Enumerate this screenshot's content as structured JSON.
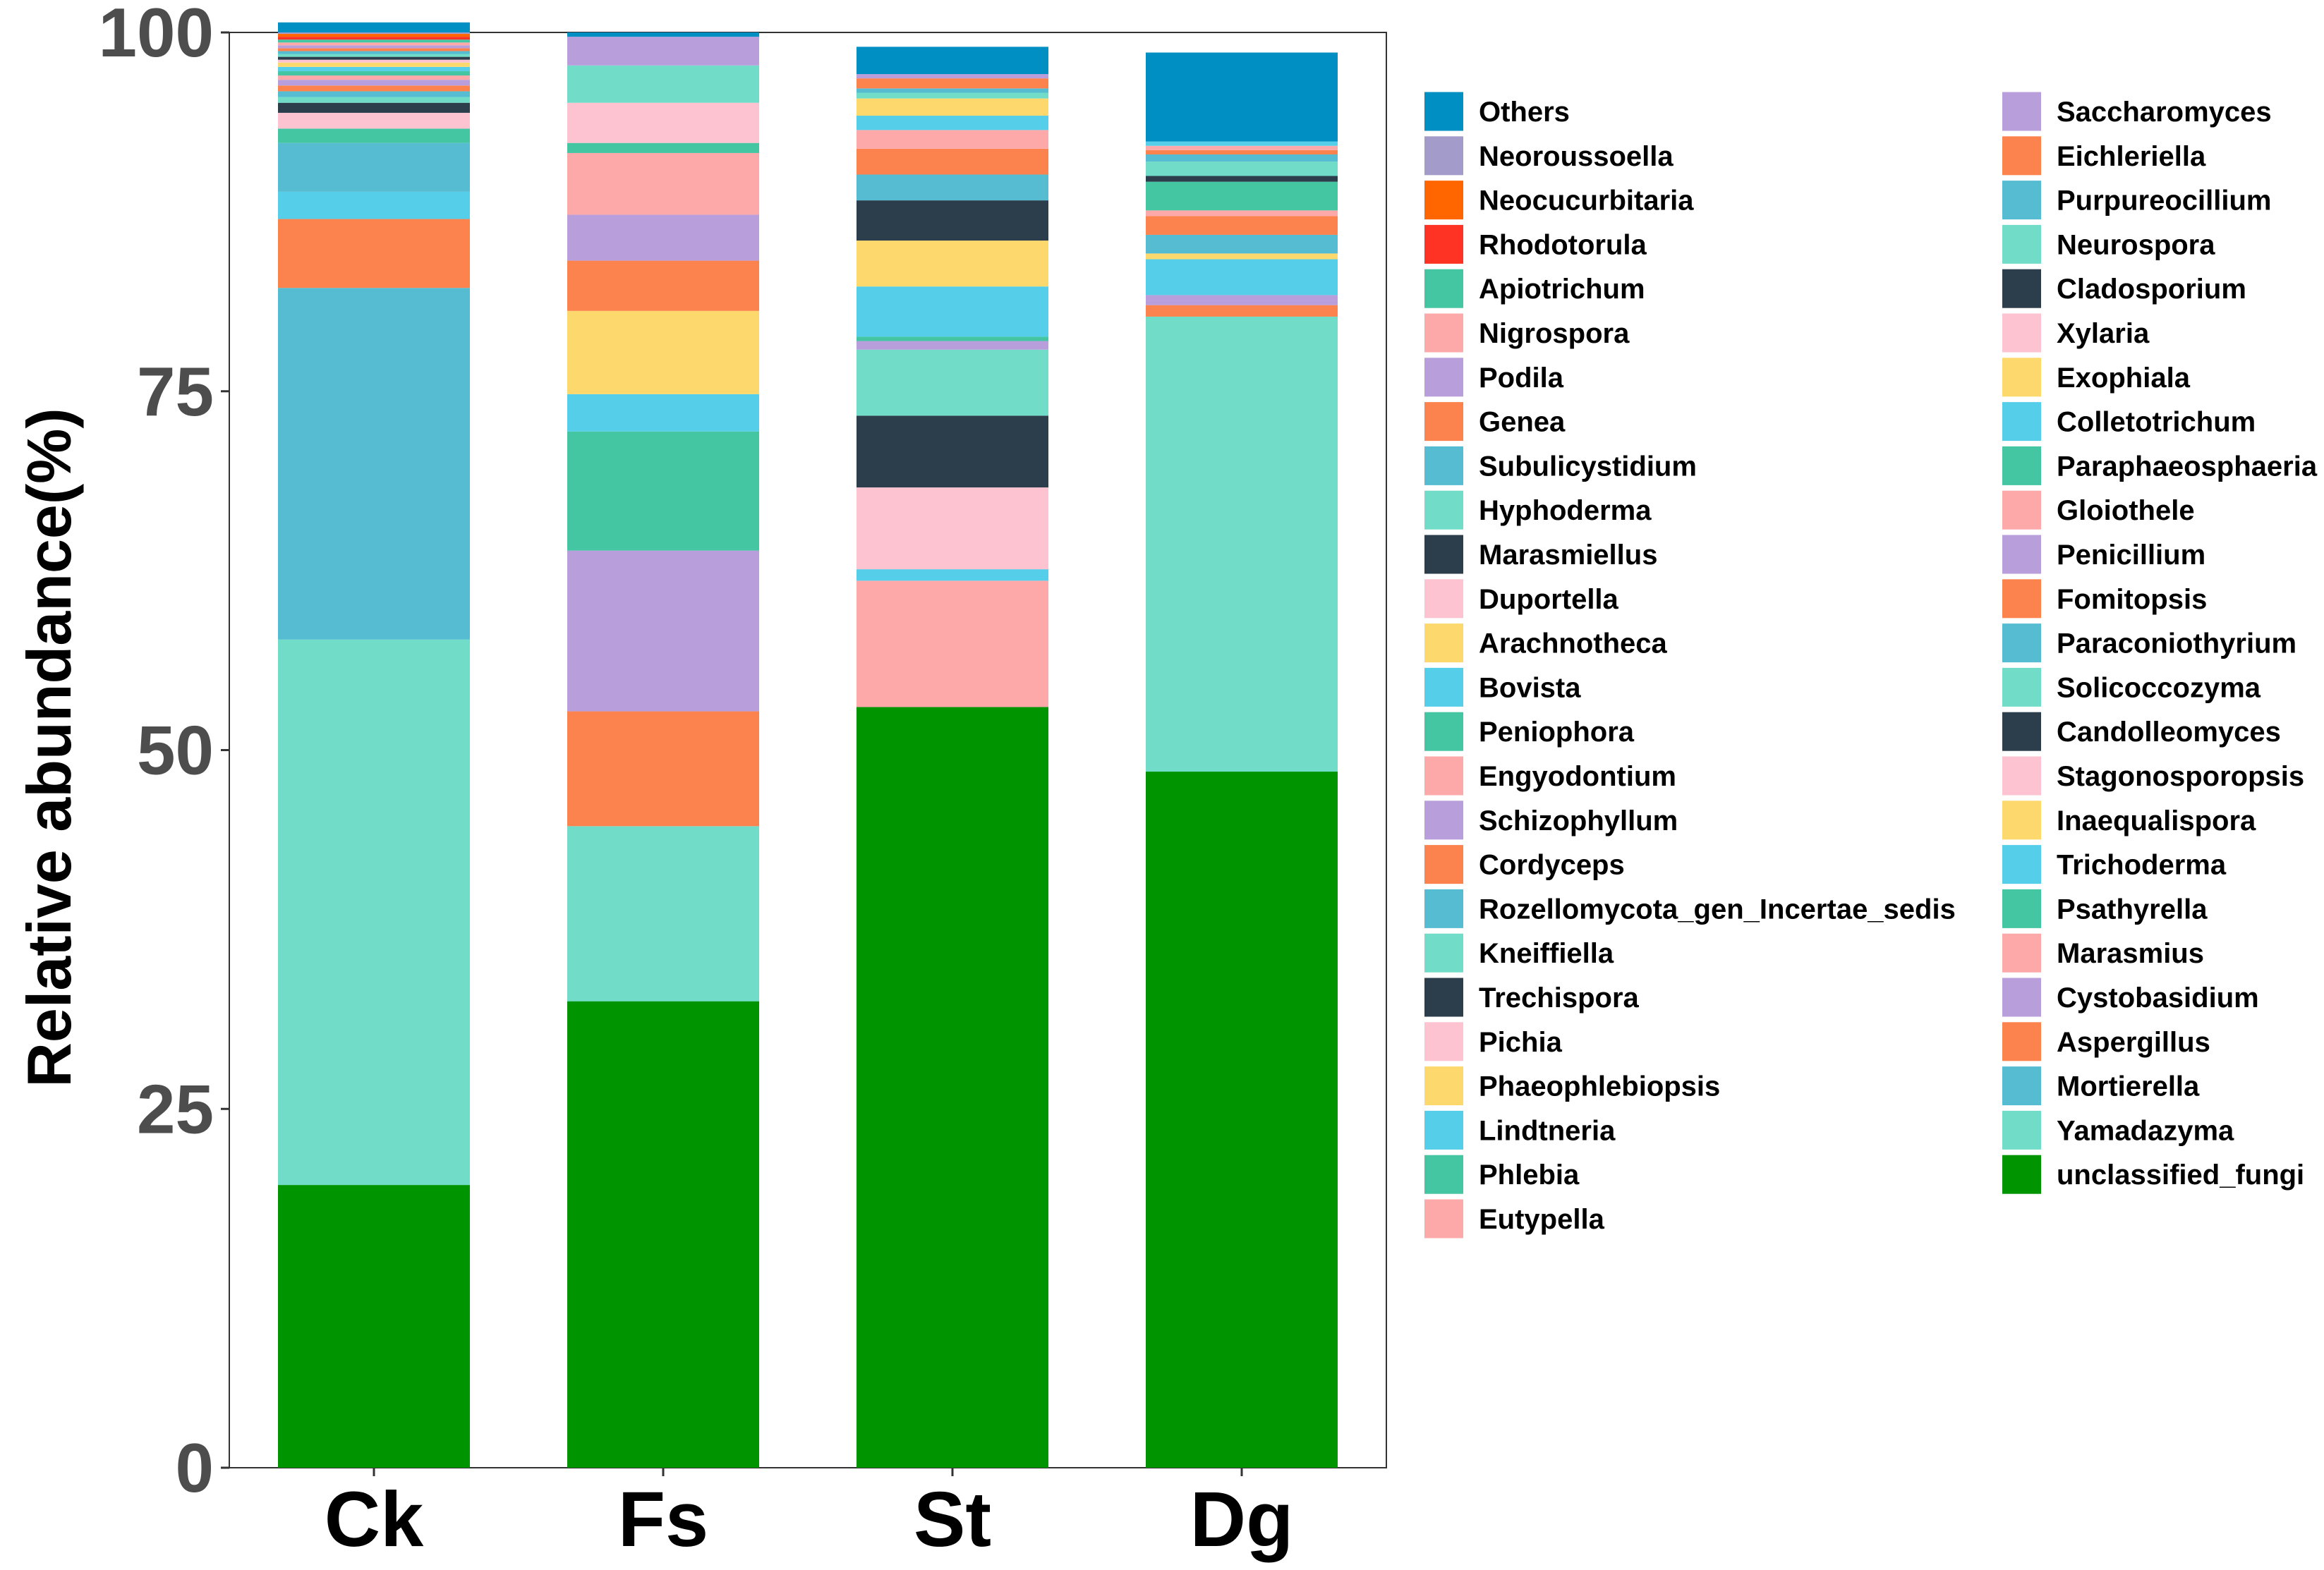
{
  "chart_data": {
    "type": "bar",
    "stacked": true,
    "title": "",
    "xlabel": "",
    "ylabel": "Relative abundance(%)",
    "ylim": [
      0,
      100
    ],
    "yticks": [
      0,
      25,
      50,
      75,
      100
    ],
    "categories": [
      "Ck",
      "Fs",
      "St",
      "Dg"
    ],
    "legend_position": "right",
    "series": [
      {
        "name": "unclassified_fungi",
        "color": "#009400",
        "values": [
          19.7,
          32.5,
          53.0,
          48.5
        ]
      },
      {
        "name": "Yamadazyma",
        "color": "#71dcc8",
        "values": [
          38.0,
          12.2,
          0.0,
          31.7
        ]
      },
      {
        "name": "Mortierella",
        "color": "#55bcd2",
        "values": [
          0.0,
          0.0,
          0.0,
          0.0
        ]
      },
      {
        "name": "Aspergillus",
        "color": "#fc834d",
        "values": [
          0.0,
          8.0,
          0.0,
          0.8
        ]
      },
      {
        "name": "Cystobasidium",
        "color": "#b89edb",
        "values": [
          0.0,
          11.2,
          0.0,
          0.3
        ]
      },
      {
        "name": "Marasmius",
        "color": "#fda9a9",
        "values": [
          0.0,
          0.0,
          8.8,
          0.0
        ]
      },
      {
        "name": "Psathyrella",
        "color": "#44c6a3",
        "values": [
          0.0,
          8.3,
          0.0,
          0.0
        ]
      },
      {
        "name": "Trichoderma",
        "color": "#55ceea",
        "values": [
          0.0,
          2.6,
          0.8,
          0.0
        ]
      },
      {
        "name": "Inaequalispora",
        "color": "#fdd86c",
        "values": [
          0.0,
          5.8,
          0.0,
          0.0
        ]
      },
      {
        "name": "Stagonosporopsis",
        "color": "#fdc3d1",
        "values": [
          0.0,
          0.0,
          5.7,
          0.0
        ]
      },
      {
        "name": "Candolleomyces",
        "color": "#2c3e4c",
        "values": [
          0.0,
          0.0,
          5.0,
          0.0
        ]
      },
      {
        "name": "Solicoccozyma",
        "color": "#71dcc8",
        "values": [
          0.0,
          0.0,
          4.6,
          0.0
        ]
      },
      {
        "name": "Paraconiothyrium",
        "color": "#55bcd2",
        "values": [
          24.5,
          0.0,
          0.0,
          0.0
        ]
      },
      {
        "name": "Fomitopsis",
        "color": "#fc834d",
        "values": [
          4.8,
          3.5,
          0.0,
          0.0
        ]
      },
      {
        "name": "Penicillium",
        "color": "#b89edb",
        "values": [
          0.0,
          3.2,
          0.6,
          0.4
        ]
      },
      {
        "name": "Gloiothele",
        "color": "#fda9a9",
        "values": [
          0.0,
          4.3,
          0.0,
          0.0
        ]
      },
      {
        "name": "Paraphaeosphaeria",
        "color": "#44c6a3",
        "values": [
          0.0,
          0.7,
          0.3,
          0.0
        ]
      },
      {
        "name": "Colletotrichum",
        "color": "#55ceea",
        "values": [
          1.9,
          0.0,
          3.5,
          2.5
        ]
      },
      {
        "name": "Exophiala",
        "color": "#fdd86c",
        "values": [
          0.0,
          0.0,
          3.2,
          0.4
        ]
      },
      {
        "name": "Xylaria",
        "color": "#fdc3d1",
        "values": [
          0.0,
          2.8,
          0.0,
          0.0
        ]
      },
      {
        "name": "Cladosporium",
        "color": "#2c3e4c",
        "values": [
          0.0,
          0.0,
          2.8,
          0.0
        ]
      },
      {
        "name": "Neurospora",
        "color": "#71dcc8",
        "values": [
          0.0,
          2.6,
          0.0,
          0.0
        ]
      },
      {
        "name": "Purpureocillium",
        "color": "#55bcd2",
        "values": [
          3.4,
          0.0,
          1.8,
          1.3
        ]
      },
      {
        "name": "Eichleriella",
        "color": "#fc834d",
        "values": [
          0.0,
          0.0,
          1.8,
          1.3
        ]
      },
      {
        "name": "Saccharomyces",
        "color": "#b89edb",
        "values": [
          0.0,
          2.0,
          0.0,
          0.0
        ]
      },
      {
        "name": "Eutypella",
        "color": "#fda9a9",
        "values": [
          0.0,
          0.0,
          1.3,
          0.4
        ]
      },
      {
        "name": "Phlebia",
        "color": "#44c6a3",
        "values": [
          1.0,
          0.0,
          0.0,
          2.0
        ]
      },
      {
        "name": "Lindtneria",
        "color": "#55ceea",
        "values": [
          0.0,
          0.0,
          1.0,
          0.0
        ]
      },
      {
        "name": "Phaeophlebiopsis",
        "color": "#fdd86c",
        "values": [
          0.0,
          0.0,
          1.2,
          0.0
        ]
      },
      {
        "name": "Pichia",
        "color": "#fdc3d1",
        "values": [
          1.1,
          0.0,
          0.0,
          0.0
        ]
      },
      {
        "name": "Trechispora",
        "color": "#2c3e4c",
        "values": [
          0.7,
          0.0,
          0.0,
          0.4
        ]
      },
      {
        "name": "Kneiffiella",
        "color": "#71dcc8",
        "values": [
          0.4,
          0.0,
          0.4,
          1.0
        ]
      },
      {
        "name": "Rozellomycota_gen_Incertae_sedis",
        "color": "#55bcd2",
        "values": [
          0.4,
          0.0,
          0.3,
          0.5
        ]
      },
      {
        "name": "Cordyceps",
        "color": "#fc834d",
        "values": [
          0.4,
          0.0,
          0.7,
          0.3
        ]
      },
      {
        "name": "Schizophyllum",
        "color": "#b89edb",
        "values": [
          0.4,
          0.0,
          0.3,
          0.0
        ]
      },
      {
        "name": "Engyodontium",
        "color": "#fda9a9",
        "values": [
          0.3,
          0.0,
          0.0,
          0.3
        ]
      },
      {
        "name": "Peniophora",
        "color": "#44c6a3",
        "values": [
          0.3,
          0.0,
          0.0,
          0.0
        ]
      },
      {
        "name": "Bovista",
        "color": "#55ceea",
        "values": [
          0.3,
          0.0,
          0.0,
          0.3
        ]
      },
      {
        "name": "Arachnotheca",
        "color": "#fdd86c",
        "values": [
          0.3,
          0.0,
          0.0,
          0.0
        ]
      },
      {
        "name": "Duportella",
        "color": "#fdc3d1",
        "values": [
          0.2,
          0.0,
          0.0,
          0.0
        ]
      },
      {
        "name": "Marasmiellus",
        "color": "#2c3e4c",
        "values": [
          0.2,
          0.0,
          0.0,
          0.0
        ]
      },
      {
        "name": "Hyphoderma",
        "color": "#71dcc8",
        "values": [
          0.2,
          0.0,
          0.0,
          0.0
        ]
      },
      {
        "name": "Subulicystidium",
        "color": "#55bcd2",
        "values": [
          0.2,
          0.0,
          0.0,
          0.0
        ]
      },
      {
        "name": "Genea",
        "color": "#fc834d",
        "values": [
          0.2,
          0.0,
          0.0,
          0.0
        ]
      },
      {
        "name": "Podila",
        "color": "#b89edb",
        "values": [
          0.2,
          0.0,
          0.0,
          0.0
        ]
      },
      {
        "name": "Nigrospora",
        "color": "#fda9a9",
        "values": [
          0.2,
          0.0,
          0.0,
          0.0
        ]
      },
      {
        "name": "Apiotrichum",
        "color": "#44c6a3",
        "values": [
          0.2,
          0.0,
          0.0,
          0.0
        ]
      },
      {
        "name": "Rhodotorula",
        "color": "#ff3324",
        "values": [
          0.2,
          0.0,
          0.0,
          0.0
        ]
      },
      {
        "name": "Neocucurbitaria",
        "color": "#ff6600",
        "values": [
          0.2,
          0.0,
          0.0,
          0.0
        ]
      },
      {
        "name": "Neoroussoella",
        "color": "#a39bc9",
        "values": [
          0.1,
          0.0,
          0.0,
          0.0
        ]
      },
      {
        "name": "Others",
        "color": "#008fc3",
        "values": [
          0.7,
          0.3,
          1.9,
          6.2
        ]
      }
    ],
    "legend_order": [
      "Others",
      "Neoroussoella",
      "Neocucurbitaria",
      "Rhodotorula",
      "Apiotrichum",
      "Nigrospora",
      "Podila",
      "Genea",
      "Subulicystidium",
      "Hyphoderma",
      "Marasmiellus",
      "Duportella",
      "Arachnotheca",
      "Bovista",
      "Peniophora",
      "Engyodontium",
      "Schizophyllum",
      "Cordyceps",
      "Rozellomycota_gen_Incertae_sedis",
      "Kneiffiella",
      "Trechispora",
      "Pichia",
      "Phaeophlebiopsis",
      "Lindtneria",
      "Phlebia",
      "Eutypella",
      "Saccharomyces",
      "Eichleriella",
      "Purpureocillium",
      "Neurospora",
      "Cladosporium",
      "Xylaria",
      "Exophiala",
      "Colletotrichum",
      "Paraphaeosphaeria",
      "Gloiothele",
      "Penicillium",
      "Fomitopsis",
      "Paraconiothyrium",
      "Solicoccozyma",
      "Candolleomyces",
      "Stagonosporopsis",
      "Inaequalispora",
      "Trichoderma",
      "Psathyrella",
      "Marasmius",
      "Cystobasidium",
      "Aspergillus",
      "Mortierella",
      "Yamadazyma",
      "unclassified_fungi"
    ]
  }
}
